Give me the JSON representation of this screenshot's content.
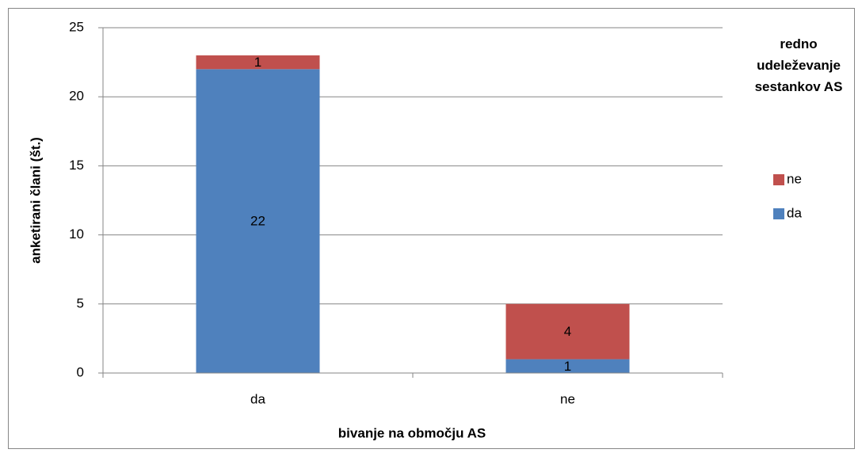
{
  "chart_data": {
    "type": "stacked_bar",
    "categories": [
      "da",
      "ne"
    ],
    "series": [
      {
        "name": "da",
        "color": "#4f81bd",
        "values": [
          22,
          1
        ]
      },
      {
        "name": "ne",
        "color": "#c0504d",
        "values": [
          1,
          4
        ]
      }
    ],
    "ylim": [
      0,
      25
    ],
    "yticks": [
      0,
      5,
      10,
      15,
      20,
      25
    ],
    "grid": true,
    "y_label": "anketirani člani (št.)",
    "x_label": "bivanje na območju AS",
    "legend_title": "redno udeleževanje sestankov AS",
    "legend_position": "right"
  }
}
